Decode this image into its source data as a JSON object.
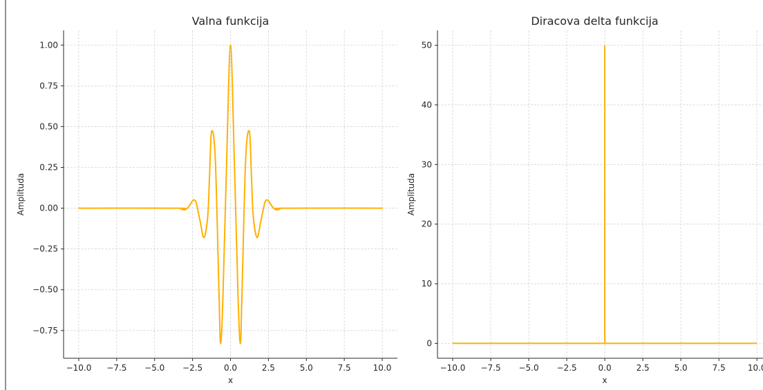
{
  "chart_data": [
    {
      "type": "line",
      "title": "Valna funkcija",
      "xlabel": "x",
      "ylabel": "Amplituda",
      "xlim": [
        -11,
        11
      ],
      "ylim": [
        -0.92,
        1.09
      ],
      "x_ticks": [
        -10,
        -7.5,
        -5,
        -2.5,
        0,
        2.5,
        5,
        7.5,
        10
      ],
      "x_tick_labels": [
        "−10.0",
        "−7.5",
        "−5.0",
        "−2.5",
        "0.0",
        "2.5",
        "5.0",
        "7.5",
        "10.0"
      ],
      "y_ticks": [
        -0.75,
        -0.5,
        -0.25,
        0,
        0.25,
        0.5,
        0.75,
        1.0
      ],
      "y_tick_labels": [
        "−0.75",
        "−0.50",
        "−0.25",
        "0.00",
        "0.25",
        "0.50",
        "0.75",
        "1.00"
      ],
      "grid": true,
      "series": [
        {
          "color": "#FFB000",
          "x": [
            -10.0,
            -3.5,
            -3.25,
            -3.0,
            -2.75,
            -2.5,
            -2.38,
            -2.25,
            -2.0,
            -1.75,
            -1.5,
            -1.38,
            -1.25,
            -1.0,
            -0.75,
            -0.65,
            -0.5,
            -0.25,
            0.0,
            0.25,
            0.5,
            0.65,
            0.75,
            1.0,
            1.25,
            1.38,
            1.5,
            1.75,
            2.0,
            2.25,
            2.38,
            2.5,
            2.75,
            3.0,
            3.25,
            3.5,
            10.0
          ],
          "y": [
            0.0,
            0.0,
            -0.005,
            -0.01,
            0.01,
            0.045,
            0.05,
            0.03,
            -0.08,
            -0.18,
            -0.05,
            0.2,
            0.47,
            0.3,
            -0.55,
            -0.83,
            -0.55,
            0.3,
            1.0,
            0.3,
            -0.55,
            -0.83,
            -0.55,
            0.3,
            0.47,
            0.2,
            -0.05,
            -0.18,
            -0.08,
            0.03,
            0.05,
            0.045,
            0.01,
            -0.01,
            -0.005,
            0.0,
            0.0
          ]
        }
      ]
    },
    {
      "type": "line",
      "title": "Diracova delta funkcija",
      "xlabel": "x",
      "ylabel": "Amplituda",
      "xlim": [
        -11,
        10.4
      ],
      "ylim": [
        -2.5,
        52.5
      ],
      "x_ticks": [
        -10,
        -7.5,
        -5,
        -2.5,
        0,
        2.5,
        5,
        7.5,
        10
      ],
      "x_tick_labels": [
        "−10.0",
        "−7.5",
        "−5.0",
        "−2.5",
        "0.0",
        "2.5",
        "5.0",
        "7.5",
        "10.0"
      ],
      "y_ticks": [
        0,
        10,
        20,
        30,
        40,
        50
      ],
      "y_tick_labels": [
        "0",
        "10",
        "20",
        "30",
        "40",
        "50"
      ],
      "grid": true,
      "series": [
        {
          "color": "#FFB000",
          "x": [
            -10.0,
            -0.001,
            0.0,
            0.001,
            10.0
          ],
          "y": [
            0,
            0,
            50,
            0,
            0
          ]
        }
      ]
    }
  ]
}
